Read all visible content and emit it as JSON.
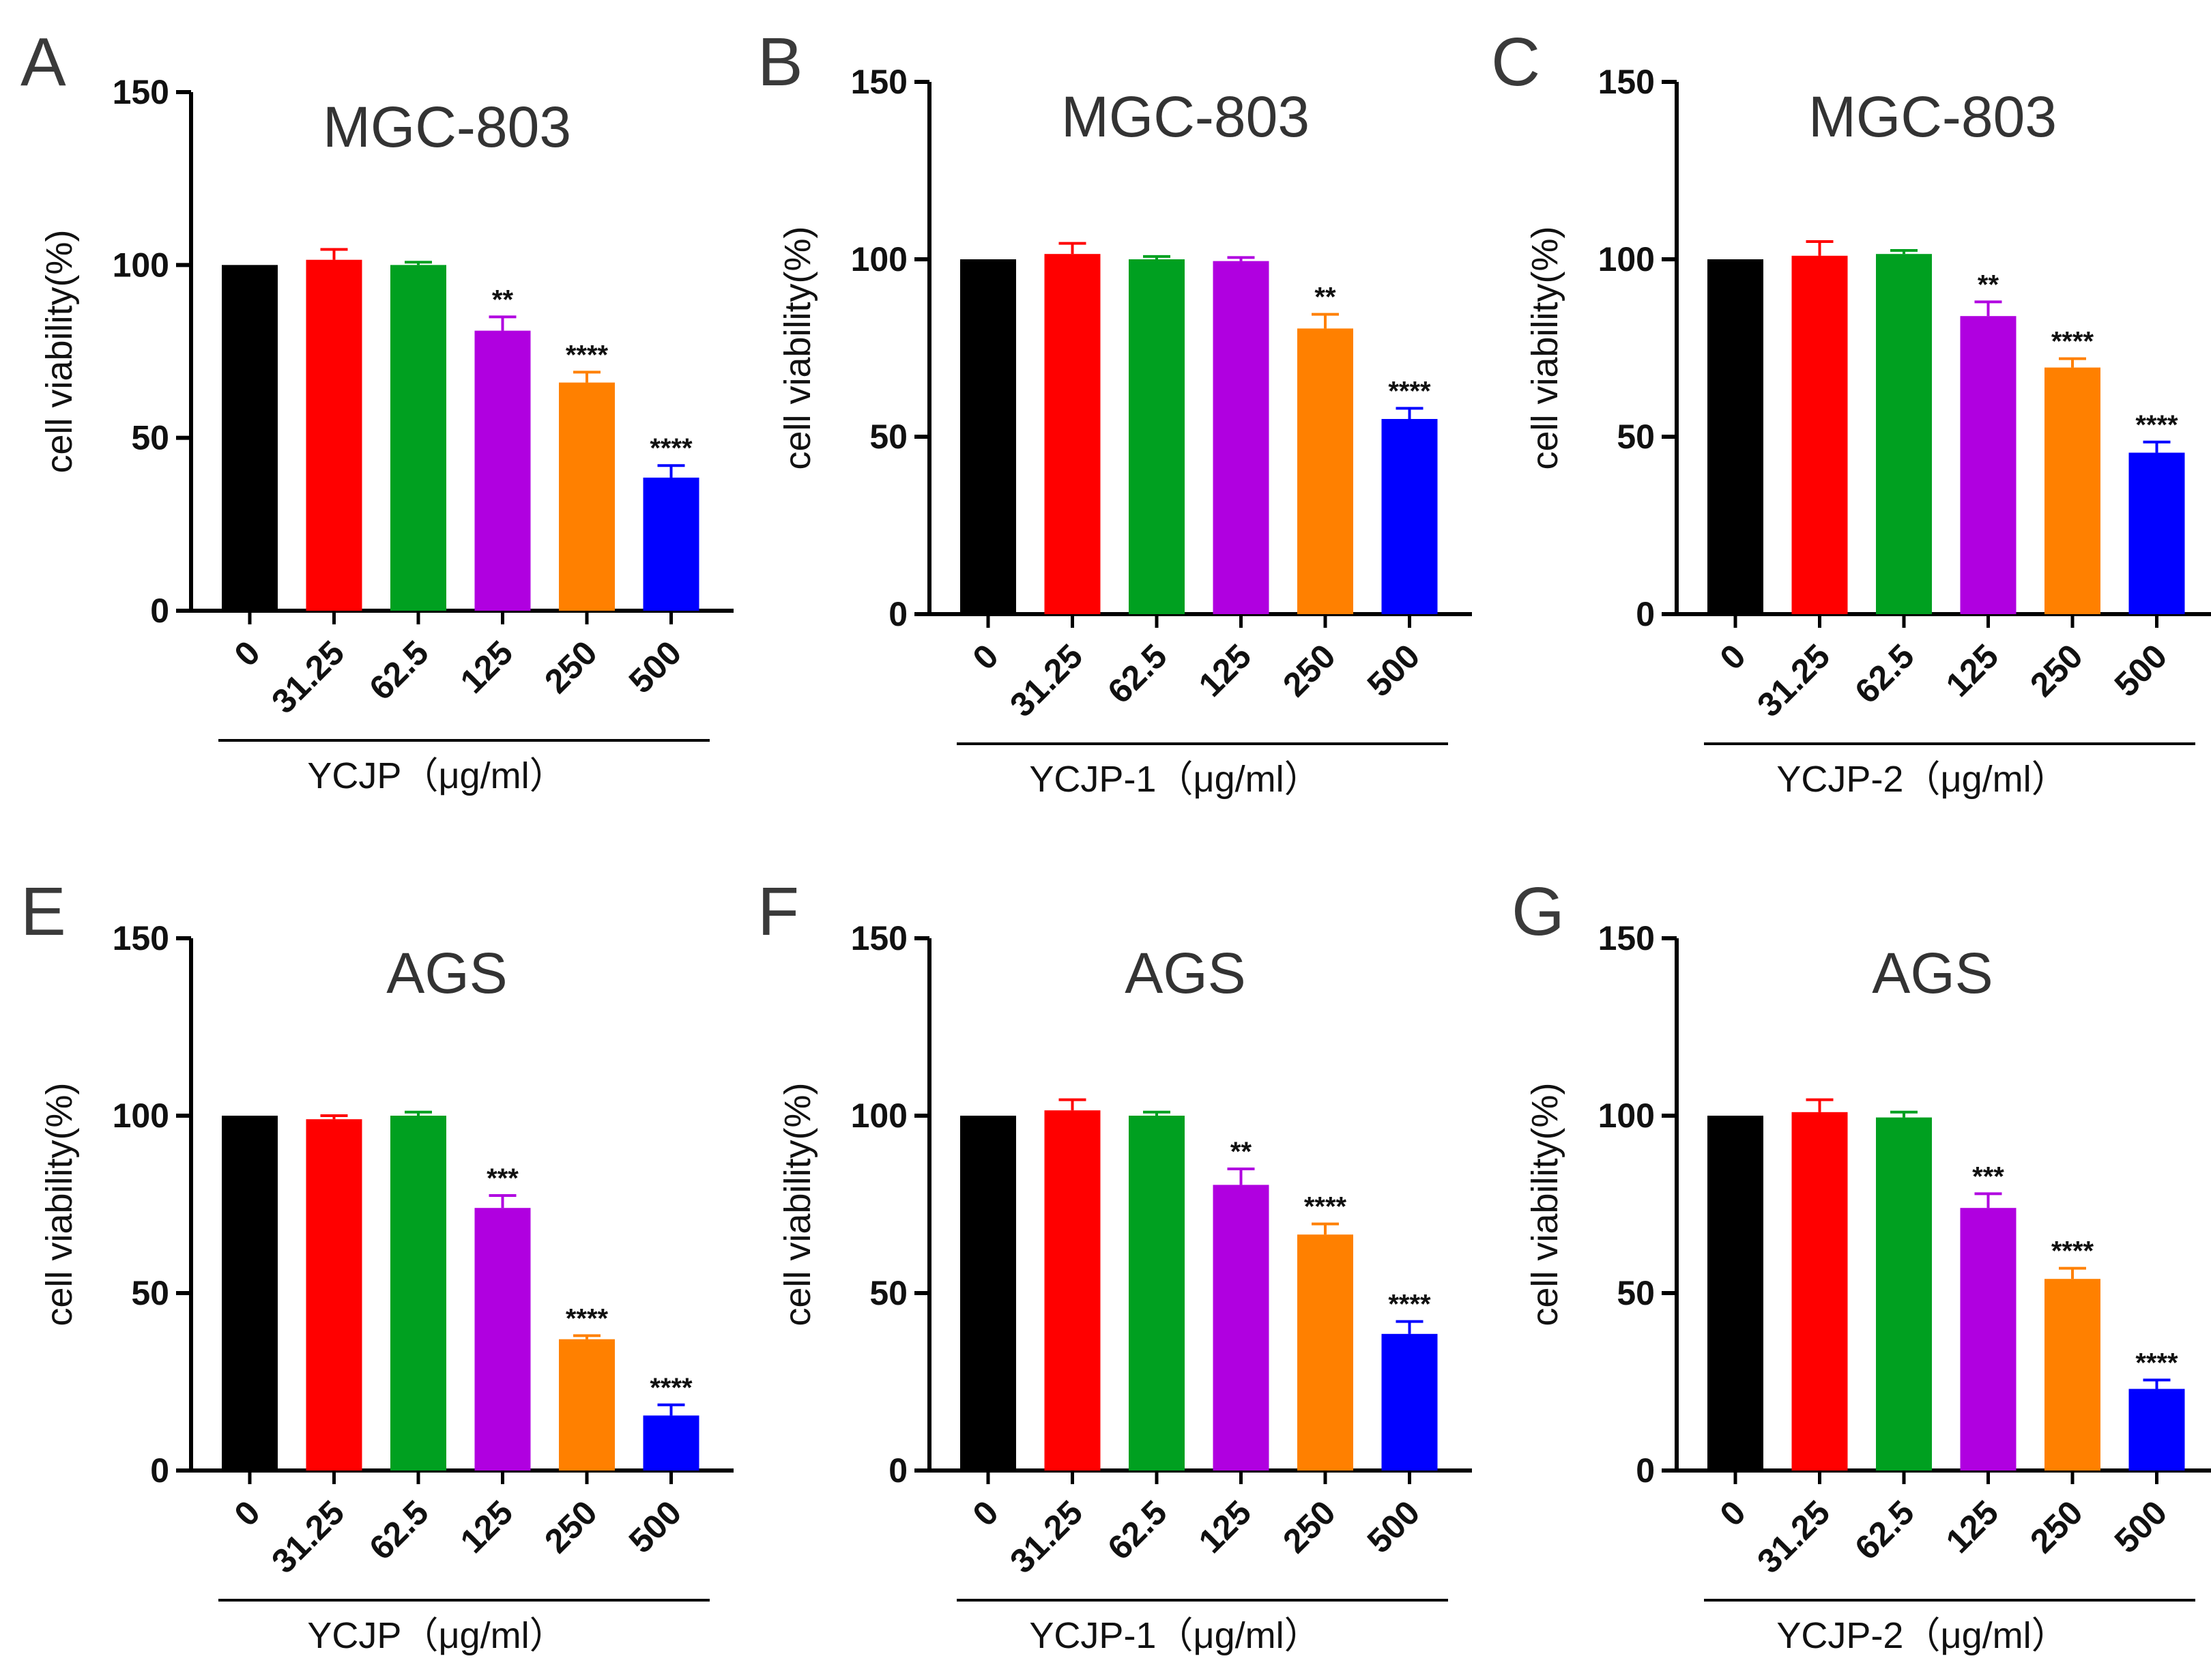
{
  "colors": [
    "#000000",
    "#ff0000",
    "#00a020",
    "#b000e0",
    "#ff8000",
    "#0000ff"
  ],
  "chart_data": [
    {
      "type": "bar",
      "panel": "A",
      "title": "MGC-803",
      "xlabel": "YCJP（μg/ml）",
      "ylabel": "cell viability(%)",
      "ylim": [
        0,
        150
      ],
      "yticks": [
        "0",
        "50",
        "100",
        "150"
      ],
      "categories": [
        "0",
        "31.25",
        "62.5",
        "125",
        "250",
        "500"
      ],
      "values": [
        100,
        101.5,
        100,
        81,
        66,
        38.5
      ],
      "errors": [
        0,
        3,
        0.8,
        4,
        3,
        3.5
      ],
      "significance": [
        "",
        "",
        "",
        "**",
        "****",
        "****"
      ]
    },
    {
      "type": "bar",
      "panel": "B",
      "title": "MGC-803",
      "xlabel": "YCJP-1（μg/ml）",
      "ylabel": "cell viability(%)",
      "ylim": [
        0,
        150
      ],
      "yticks": [
        "0",
        "50",
        "100",
        "150"
      ],
      "categories": [
        "0",
        "31.25",
        "62.5",
        "125",
        "250",
        "500"
      ],
      "values": [
        100,
        101.5,
        100,
        99.5,
        80.5,
        55
      ],
      "errors": [
        0,
        3,
        0.8,
        1,
        4,
        3
      ],
      "significance": [
        "",
        "",
        "",
        "",
        "**",
        "****"
      ]
    },
    {
      "type": "bar",
      "panel": "C",
      "title": "MGC-803",
      "xlabel": "YCJP-2（μg/ml）",
      "ylabel": "cell viability(%)",
      "ylim": [
        0,
        150
      ],
      "yticks": [
        "0",
        "50",
        "100",
        "150"
      ],
      "categories": [
        "0",
        "31.25",
        "62.5",
        "125",
        "250",
        "500"
      ],
      "values": [
        100,
        101,
        101.5,
        84,
        69.5,
        45.5
      ],
      "errors": [
        0,
        4,
        1,
        4,
        2.5,
        3
      ],
      "significance": [
        "",
        "",
        "",
        "**",
        "****",
        "****"
      ]
    },
    {
      "type": "bar",
      "panel": "E",
      "title": "AGS",
      "xlabel": "YCJP（μg/ml）",
      "ylabel": "cell viability(%)",
      "ylim": [
        0,
        150
      ],
      "yticks": [
        "0",
        "50",
        "100",
        "150"
      ],
      "categories": [
        "0",
        "31.25",
        "62.5",
        "125",
        "250",
        "500"
      ],
      "values": [
        100,
        99,
        100,
        74,
        37,
        15.5
      ],
      "errors": [
        0,
        1,
        1,
        3.5,
        1,
        3
      ],
      "significance": [
        "",
        "",
        "",
        "***",
        "****",
        "****"
      ]
    },
    {
      "type": "bar",
      "panel": "F",
      "title": "AGS",
      "xlabel": "YCJP-1（μg/ml）",
      "ylabel": "cell viability(%)",
      "ylim": [
        0,
        150
      ],
      "yticks": [
        "0",
        "50",
        "100",
        "150"
      ],
      "categories": [
        "0",
        "31.25",
        "62.5",
        "125",
        "250",
        "500"
      ],
      "values": [
        100,
        101.5,
        100,
        80.5,
        66.5,
        38.5
      ],
      "errors": [
        0,
        3,
        1,
        4.5,
        3,
        3.5
      ],
      "significance": [
        "",
        "",
        "",
        "**",
        "****",
        "****"
      ]
    },
    {
      "type": "bar",
      "panel": "G",
      "title": "AGS",
      "xlabel": "YCJP-2（μg/ml）",
      "ylabel": "cell viability(%)",
      "ylim": [
        0,
        150
      ],
      "yticks": [
        "0",
        "50",
        "100",
        "150"
      ],
      "categories": [
        "0",
        "31.25",
        "62.5",
        "125",
        "250",
        "500"
      ],
      "values": [
        100,
        101,
        99.5,
        74,
        54,
        23
      ],
      "errors": [
        0,
        3.5,
        1.5,
        4,
        3,
        2.5
      ],
      "significance": [
        "",
        "",
        "",
        "***",
        "****",
        "****"
      ]
    }
  ]
}
